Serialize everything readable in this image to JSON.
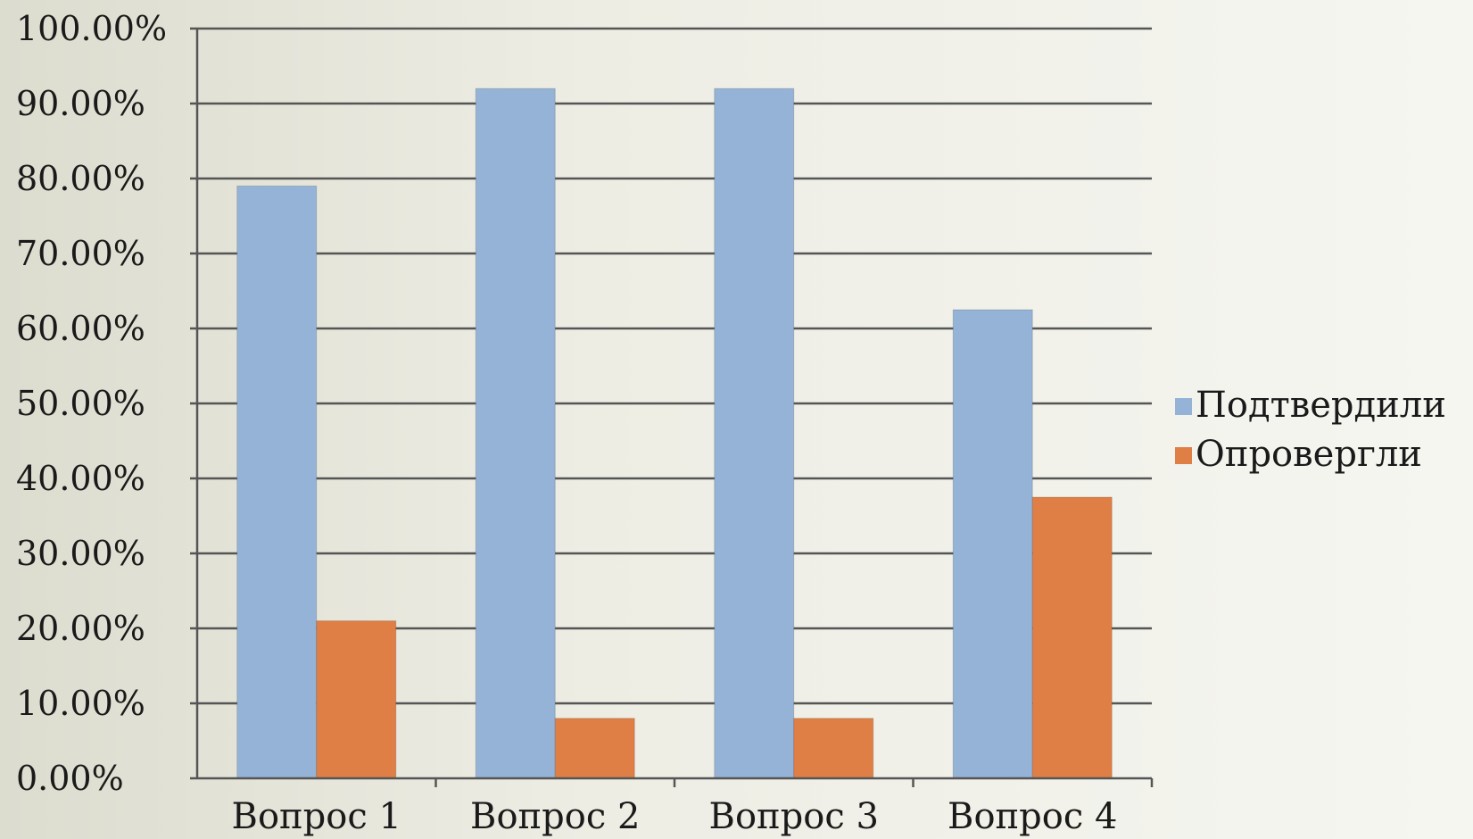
{
  "chart_data": {
    "type": "bar",
    "categories": [
      "Вопрос 1",
      "Вопрос 2",
      "Вопрос 3",
      "Вопрос 4"
    ],
    "series": [
      {
        "name": "Подтвердили",
        "values": [
          0.79,
          0.92,
          0.92,
          0.625
        ],
        "color": "#95b3d7"
      },
      {
        "name": "Опровергли",
        "values": [
          0.21,
          0.08,
          0.08,
          0.375
        ],
        "color": "#e07f45"
      }
    ],
    "yticks": [
      "0.00%",
      "10.00%",
      "20.00%",
      "30.00%",
      "40.00%",
      "50.00%",
      "60.00%",
      "70.00%",
      "80.00%",
      "90.00%",
      "100.00%"
    ],
    "ylim": [
      0,
      1
    ],
    "grid": true,
    "legend_position": "right"
  }
}
